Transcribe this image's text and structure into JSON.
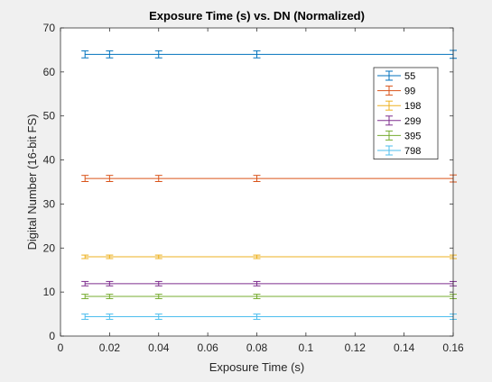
{
  "chart_data": {
    "type": "line",
    "title": "Exposure Time (s) vs. DN (Normalized)",
    "xlabel": "Exposure Time (s)",
    "ylabel": "Digital Number (16-bit FS)",
    "xlim": [
      0,
      0.16
    ],
    "ylim": [
      0,
      70
    ],
    "xticks": [
      "0",
      "0.02",
      "0.04",
      "0.06",
      "0.08",
      "0.1",
      "0.12",
      "0.14",
      "0.16"
    ],
    "yticks": [
      "0",
      "10",
      "20",
      "30",
      "40",
      "50",
      "60",
      "70"
    ],
    "x": [
      0.01,
      0.02,
      0.04,
      0.08,
      0.16
    ],
    "grid": false,
    "legend_position": "top-right",
    "series": [
      {
        "name": "55",
        "color": "#0072BD",
        "values": [
          64,
          64,
          64,
          64,
          64
        ],
        "error": [
          0.8,
          0.8,
          0.8,
          0.8,
          0.9
        ]
      },
      {
        "name": "99",
        "color": "#D95319",
        "values": [
          35.8,
          35.8,
          35.8,
          35.8,
          35.8
        ],
        "error": [
          0.7,
          0.7,
          0.7,
          0.7,
          0.8
        ]
      },
      {
        "name": "198",
        "color": "#EDB120",
        "values": [
          18,
          18,
          18,
          18,
          18
        ],
        "error": [
          0.4,
          0.4,
          0.4,
          0.4,
          0.4
        ]
      },
      {
        "name": "299",
        "color": "#7E2F8E",
        "values": [
          11.9,
          11.9,
          11.9,
          11.9,
          11.9
        ],
        "error": [
          0.5,
          0.5,
          0.5,
          0.5,
          0.5
        ]
      },
      {
        "name": "395",
        "color": "#77AC30",
        "values": [
          9,
          9,
          9,
          9,
          9
        ],
        "error": [
          0.5,
          0.5,
          0.5,
          0.5,
          0.5
        ]
      },
      {
        "name": "798",
        "color": "#4DBEEE",
        "values": [
          4.4,
          4.4,
          4.4,
          4.4,
          4.4
        ],
        "error": [
          0.6,
          0.6,
          0.6,
          0.6,
          0.6
        ]
      }
    ]
  }
}
